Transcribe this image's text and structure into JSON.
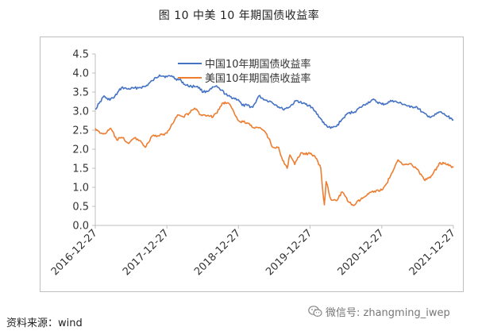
{
  "figure": {
    "title": "图 10  中美 10 年期国债收益率"
  },
  "footer": {
    "source": "资料来源：wind",
    "watermark": "微信号: zhangming_iwep",
    "watermark_icon": "wechat-icon"
  },
  "colors": {
    "china": "#4472c4",
    "us": "#ed7d31"
  },
  "chart_data": {
    "type": "line",
    "title": "",
    "xlabel": "",
    "ylabel": "",
    "ylim": [
      0,
      4.5
    ],
    "yticks": [
      "0.0",
      "0.5",
      "1.0",
      "1.5",
      "2.0",
      "2.5",
      "3.0",
      "3.5",
      "4.0",
      "4.5"
    ],
    "xticks": [
      "2016-12-27",
      "2017-12-27",
      "2018-12-27",
      "2019-12-27",
      "2020-12-27",
      "2021-12-27"
    ],
    "xrange": [
      "2016-12-27",
      "2021-12-27"
    ],
    "grid": false,
    "legend": "top-center",
    "series": [
      {
        "name": "中国10年期国债收益率",
        "color": "#4472c4",
        "points": [
          [
            "2016-12-27",
            3.05
          ],
          [
            "2017-01-15",
            3.2
          ],
          [
            "2017-02-10",
            3.4
          ],
          [
            "2017-03-01",
            3.3
          ],
          [
            "2017-04-01",
            3.35
          ],
          [
            "2017-05-10",
            3.62
          ],
          [
            "2017-06-10",
            3.58
          ],
          [
            "2017-07-10",
            3.6
          ],
          [
            "2017-08-10",
            3.62
          ],
          [
            "2017-09-10",
            3.65
          ],
          [
            "2017-10-15",
            3.8
          ],
          [
            "2017-11-20",
            3.95
          ],
          [
            "2017-12-27",
            3.9
          ],
          [
            "2018-01-20",
            3.93
          ],
          [
            "2018-02-10",
            3.85
          ],
          [
            "2018-03-10",
            3.8
          ],
          [
            "2018-04-01",
            3.68
          ],
          [
            "2018-05-01",
            3.65
          ],
          [
            "2018-06-01",
            3.65
          ],
          [
            "2018-07-01",
            3.5
          ],
          [
            "2018-08-01",
            3.55
          ],
          [
            "2018-09-01",
            3.65
          ],
          [
            "2018-10-01",
            3.55
          ],
          [
            "2018-11-01",
            3.4
          ],
          [
            "2018-12-27",
            3.3
          ],
          [
            "2019-01-15",
            3.15
          ],
          [
            "2019-02-10",
            3.15
          ],
          [
            "2019-03-10",
            3.1
          ],
          [
            "2019-04-10",
            3.4
          ],
          [
            "2019-05-10",
            3.3
          ],
          [
            "2019-06-10",
            3.25
          ],
          [
            "2019-07-10",
            3.15
          ],
          [
            "2019-08-10",
            3.05
          ],
          [
            "2019-09-10",
            3.1
          ],
          [
            "2019-10-20",
            3.28
          ],
          [
            "2019-11-20",
            3.2
          ],
          [
            "2019-12-27",
            3.15
          ],
          [
            "2020-01-20",
            3.0
          ],
          [
            "2020-02-20",
            2.8
          ],
          [
            "2020-03-10",
            2.65
          ],
          [
            "2020-04-10",
            2.55
          ],
          [
            "2020-05-10",
            2.6
          ],
          [
            "2020-06-10",
            2.8
          ],
          [
            "2020-07-10",
            2.95
          ],
          [
            "2020-08-10",
            2.98
          ],
          [
            "2020-09-10",
            3.1
          ],
          [
            "2020-10-10",
            3.2
          ],
          [
            "2020-11-10",
            3.3
          ],
          [
            "2020-12-27",
            3.18
          ],
          [
            "2021-01-20",
            3.2
          ],
          [
            "2021-02-20",
            3.28
          ],
          [
            "2021-03-20",
            3.22
          ],
          [
            "2021-04-20",
            3.18
          ],
          [
            "2021-05-20",
            3.1
          ],
          [
            "2021-06-20",
            3.12
          ],
          [
            "2021-07-20",
            2.98
          ],
          [
            "2021-08-20",
            2.85
          ],
          [
            "2021-09-20",
            2.88
          ],
          [
            "2021-10-20",
            2.98
          ],
          [
            "2021-11-20",
            2.88
          ],
          [
            "2021-12-27",
            2.78
          ]
        ]
      },
      {
        "name": "美国10年期国债收益率",
        "color": "#ed7d31",
        "points": [
          [
            "2016-12-27",
            2.55
          ],
          [
            "2017-01-20",
            2.42
          ],
          [
            "2017-02-20",
            2.42
          ],
          [
            "2017-03-15",
            2.55
          ],
          [
            "2017-04-15",
            2.25
          ],
          [
            "2017-05-15",
            2.3
          ],
          [
            "2017-06-15",
            2.15
          ],
          [
            "2017-07-15",
            2.3
          ],
          [
            "2017-08-15",
            2.22
          ],
          [
            "2017-09-08",
            2.05
          ],
          [
            "2017-10-15",
            2.35
          ],
          [
            "2017-11-15",
            2.35
          ],
          [
            "2017-12-27",
            2.42
          ],
          [
            "2018-01-20",
            2.65
          ],
          [
            "2018-02-20",
            2.9
          ],
          [
            "2018-03-20",
            2.85
          ],
          [
            "2018-04-20",
            2.95
          ],
          [
            "2018-05-18",
            3.08
          ],
          [
            "2018-06-20",
            2.9
          ],
          [
            "2018-07-20",
            2.88
          ],
          [
            "2018-08-20",
            2.85
          ],
          [
            "2018-09-20",
            3.05
          ],
          [
            "2018-10-10",
            3.22
          ],
          [
            "2018-11-08",
            3.2
          ],
          [
            "2018-12-27",
            2.75
          ],
          [
            "2019-01-20",
            2.72
          ],
          [
            "2019-02-20",
            2.68
          ],
          [
            "2019-03-20",
            2.55
          ],
          [
            "2019-04-20",
            2.55
          ],
          [
            "2019-05-20",
            2.4
          ],
          [
            "2019-06-20",
            2.05
          ],
          [
            "2019-07-20",
            2.05
          ],
          [
            "2019-08-10",
            1.7
          ],
          [
            "2019-09-01",
            1.5
          ],
          [
            "2019-09-15",
            1.85
          ],
          [
            "2019-10-10",
            1.6
          ],
          [
            "2019-11-10",
            1.9
          ],
          [
            "2019-12-27",
            1.88
          ],
          [
            "2020-01-20",
            1.82
          ],
          [
            "2020-02-20",
            1.5
          ],
          [
            "2020-03-05",
            0.7
          ],
          [
            "2020-03-09",
            0.54
          ],
          [
            "2020-03-18",
            1.15
          ],
          [
            "2020-04-10",
            0.7
          ],
          [
            "2020-05-10",
            0.65
          ],
          [
            "2020-06-08",
            0.88
          ],
          [
            "2020-07-10",
            0.62
          ],
          [
            "2020-08-04",
            0.52
          ],
          [
            "2020-09-10",
            0.68
          ],
          [
            "2020-10-10",
            0.78
          ],
          [
            "2020-11-10",
            0.9
          ],
          [
            "2020-12-27",
            0.93
          ],
          [
            "2021-01-20",
            1.1
          ],
          [
            "2021-02-20",
            1.4
          ],
          [
            "2021-03-20",
            1.72
          ],
          [
            "2021-04-20",
            1.6
          ],
          [
            "2021-05-20",
            1.62
          ],
          [
            "2021-06-20",
            1.5
          ],
          [
            "2021-07-20",
            1.3
          ],
          [
            "2021-08-04",
            1.18
          ],
          [
            "2021-09-10",
            1.32
          ],
          [
            "2021-10-20",
            1.65
          ],
          [
            "2021-11-20",
            1.6
          ],
          [
            "2021-12-27",
            1.52
          ]
        ]
      }
    ]
  }
}
